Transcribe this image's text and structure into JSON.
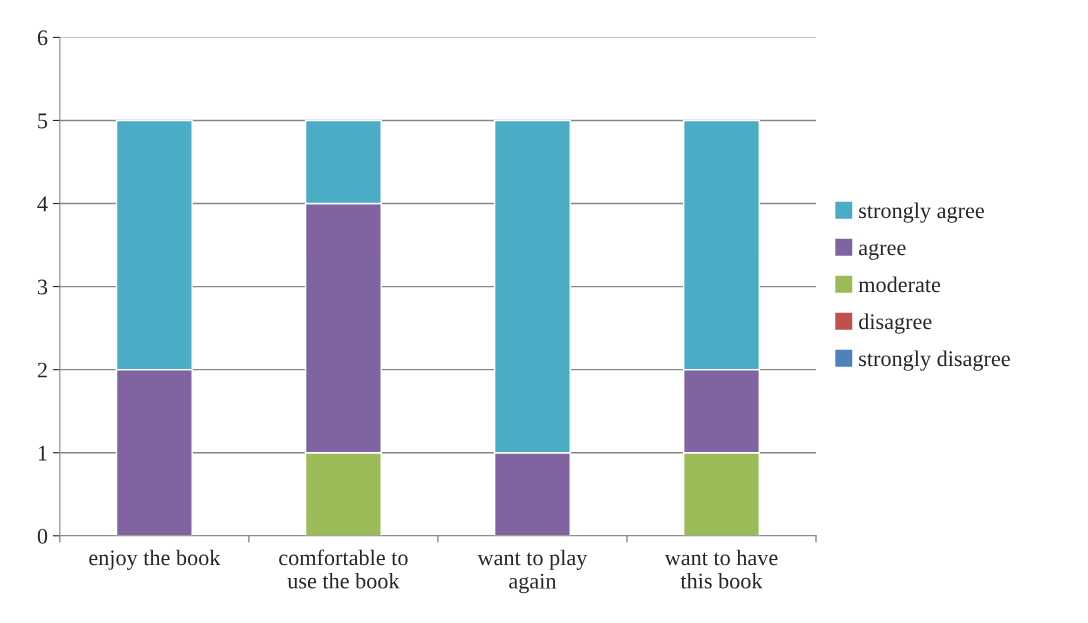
{
  "chart_data": {
    "type": "bar",
    "stacked": true,
    "categories": [
      "enjoy the book",
      "comfortable to use the book",
      "want to play again",
      "want to have this book"
    ],
    "series": [
      {
        "name": "strongly disagree",
        "color": "#4f81bd",
        "values": [
          0,
          0,
          0,
          0
        ]
      },
      {
        "name": "disagree",
        "color": "#c0504d",
        "values": [
          0,
          0,
          0,
          0
        ]
      },
      {
        "name": "moderate",
        "color": "#9bbb59",
        "values": [
          0,
          1,
          0,
          1
        ]
      },
      {
        "name": "agree",
        "color": "#8064a2",
        "values": [
          2,
          3,
          1,
          1
        ]
      },
      {
        "name": "strongly agree",
        "color": "#4bacc6",
        "values": [
          3,
          1,
          4,
          3
        ]
      }
    ],
    "ylim": [
      0,
      6
    ],
    "yticks": [
      0,
      1,
      2,
      3,
      4,
      5,
      6
    ],
    "grid": "y",
    "legend": "right"
  }
}
